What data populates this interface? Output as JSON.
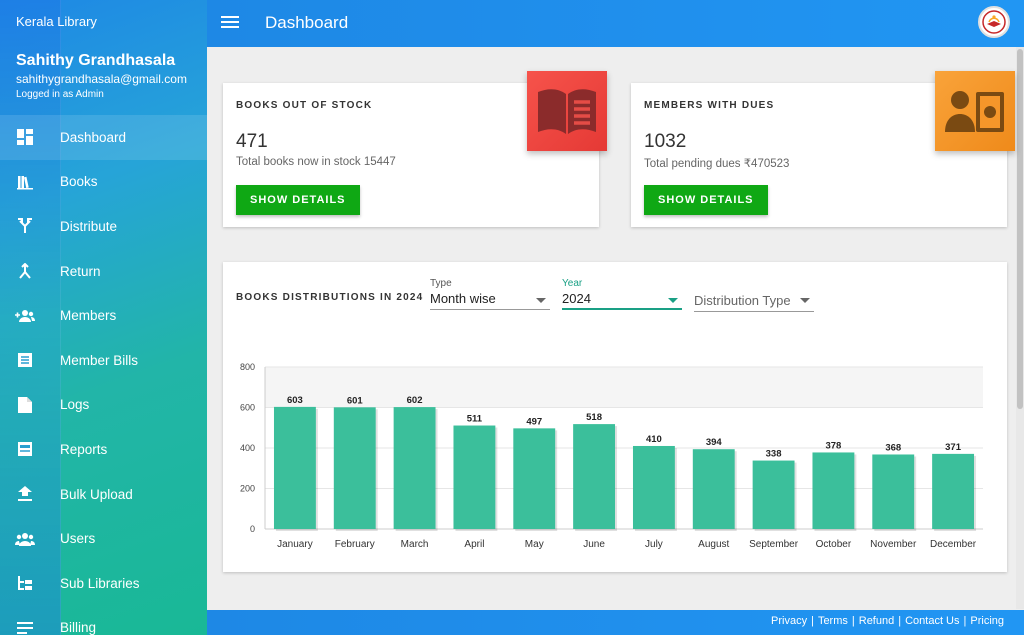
{
  "sidebar": {
    "brand": "Kerala Library",
    "user": {
      "name": "Sahithy Grandhasala",
      "email": "sahithygrandhasala@gmail.com",
      "role": "Logged in as Admin"
    },
    "items": [
      {
        "label": "Dashboard",
        "icon": "dashboard-icon",
        "active": true
      },
      {
        "label": "Books",
        "icon": "books-icon"
      },
      {
        "label": "Distribute",
        "icon": "distribute-icon"
      },
      {
        "label": "Return",
        "icon": "return-icon"
      },
      {
        "label": "Members",
        "icon": "members-icon"
      },
      {
        "label": "Member Bills",
        "icon": "member-bills-icon"
      },
      {
        "label": "Logs",
        "icon": "logs-icon"
      },
      {
        "label": "Reports",
        "icon": "reports-icon"
      },
      {
        "label": "Bulk Upload",
        "icon": "upload-icon"
      },
      {
        "label": "Users",
        "icon": "users-icon"
      },
      {
        "label": "Sub Libraries",
        "icon": "sub-libraries-icon"
      },
      {
        "label": "Billing",
        "icon": "billing-icon"
      }
    ]
  },
  "header": {
    "title": "Dashboard"
  },
  "cards": {
    "out_of_stock": {
      "heading": "BOOKS OUT OF STOCK",
      "value": "471",
      "sub": "Total books now in stock 15447",
      "button": "SHOW DETAILS",
      "icon": "open-book-icon",
      "color": "#f44336"
    },
    "dues": {
      "heading": "MEMBERS WITH DUES",
      "value": "1032",
      "sub": "Total pending dues ₹470523",
      "button": "SHOW DETAILS",
      "icon": "member-money-icon",
      "color": "#f5962a"
    }
  },
  "chart_panel": {
    "heading": "BOOKS DISTRIBUTIONS IN 2024",
    "filters": {
      "type": {
        "label": "Type",
        "value": "Month wise"
      },
      "year": {
        "label": "Year",
        "value": "2024"
      },
      "distribution_type": {
        "placeholder": "Distribution Type"
      }
    }
  },
  "chart_data": {
    "type": "bar",
    "title": "BOOKS DISTRIBUTIONS IN 2024",
    "categories": [
      "January",
      "February",
      "March",
      "April",
      "May",
      "June",
      "July",
      "August",
      "September",
      "October",
      "November",
      "December"
    ],
    "values": [
      603,
      601,
      602,
      511,
      497,
      518,
      410,
      394,
      338,
      378,
      368,
      371
    ],
    "ylim": [
      0,
      800
    ],
    "yticks": [
      0,
      200,
      400,
      600,
      800
    ],
    "grid": true,
    "bar_color": "#3bbf9b"
  },
  "footer": {
    "links": [
      "Privacy",
      "Terms",
      "Refund",
      "Contact Us",
      "Pricing"
    ]
  }
}
